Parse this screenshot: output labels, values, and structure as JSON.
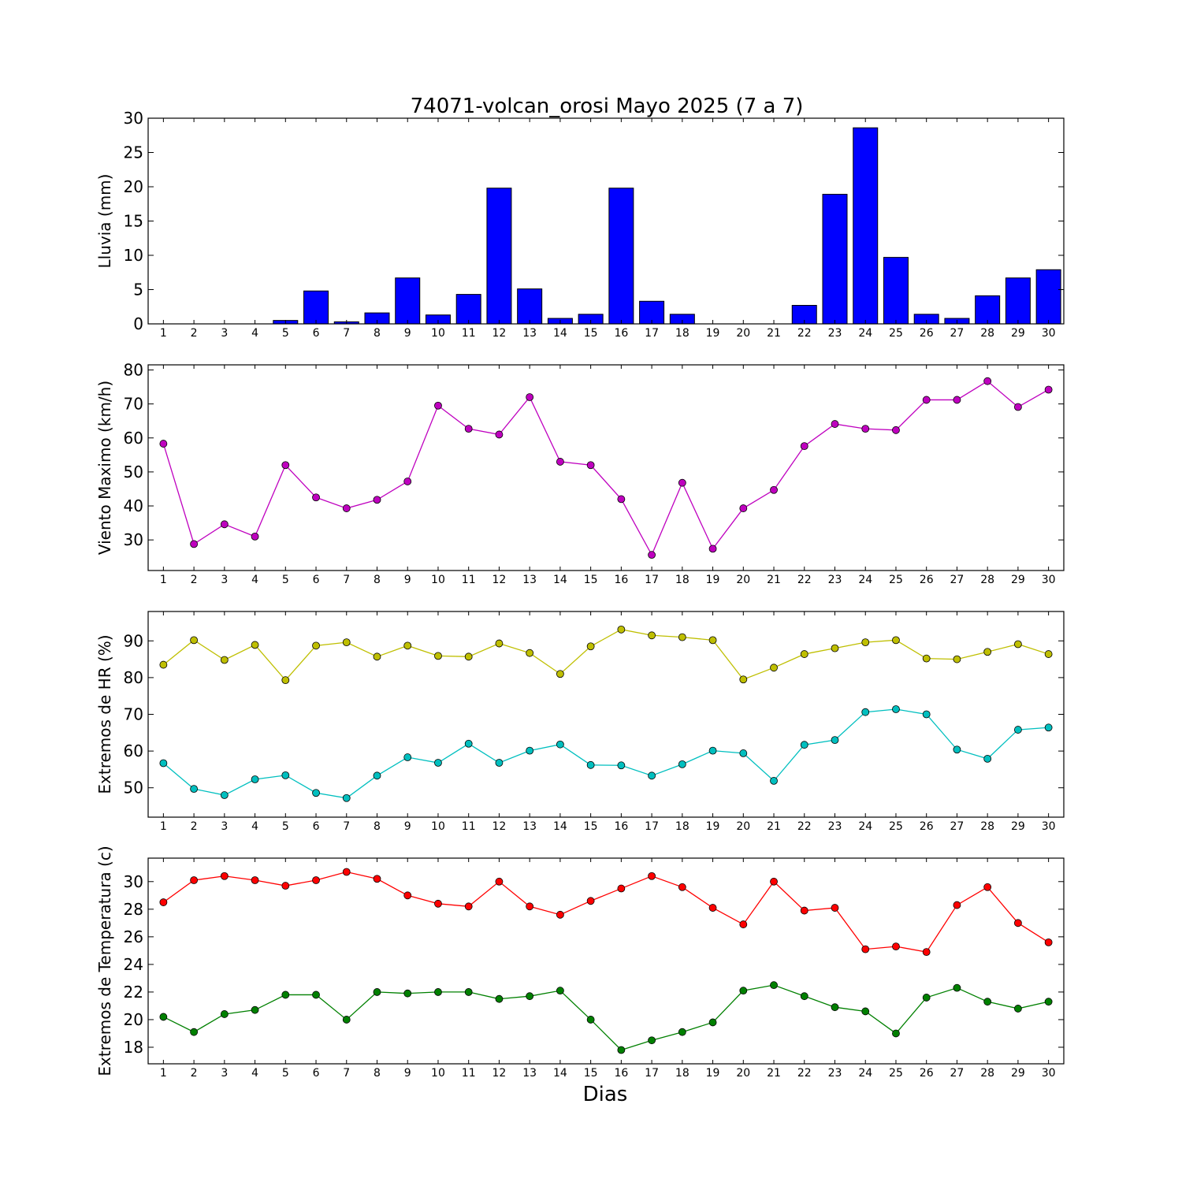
{
  "figure": {
    "title": "74071-volcan_orosi Mayo 2025  (7 a 7)",
    "xlabel": "Dias"
  },
  "chart_data": [
    {
      "type": "bar",
      "ylabel": "Lluvia (mm)",
      "ylim": [
        0,
        30
      ],
      "yticks": [
        0,
        5,
        10,
        15,
        20,
        25,
        30
      ],
      "categories": [
        1,
        2,
        3,
        4,
        5,
        6,
        7,
        8,
        9,
        10,
        11,
        12,
        13,
        14,
        15,
        16,
        17,
        18,
        19,
        20,
        21,
        22,
        23,
        24,
        25,
        26,
        27,
        28,
        29,
        30
      ],
      "series": [
        {
          "color": "#0000ff",
          "values": [
            0,
            0,
            0,
            0,
            0.5,
            4.8,
            0.3,
            1.6,
            6.7,
            1.3,
            4.3,
            19.8,
            5.1,
            0.8,
            1.4,
            19.8,
            3.3,
            1.4,
            0,
            0,
            0,
            2.7,
            18.9,
            28.6,
            9.7,
            1.4,
            0.8,
            4.1,
            6.7,
            7.9
          ]
        }
      ],
      "grid": false
    },
    {
      "type": "line",
      "ylabel": "Viento Maximo (km/h)",
      "ylim": [
        21,
        81.5
      ],
      "yticks": [
        30,
        40,
        50,
        60,
        70,
        80
      ],
      "x": [
        1,
        2,
        3,
        4,
        5,
        6,
        7,
        8,
        9,
        10,
        11,
        12,
        13,
        14,
        15,
        16,
        17,
        18,
        19,
        20,
        21,
        22,
        23,
        24,
        25,
        26,
        27,
        28,
        29,
        30
      ],
      "series": [
        {
          "color": "#bf00bf",
          "values": [
            58.3,
            28.8,
            34.6,
            31.0,
            52.0,
            42.5,
            39.3,
            41.8,
            47.2,
            69.5,
            62.7,
            61.0,
            72.0,
            53.0,
            52.0,
            42.0,
            25.6,
            46.8,
            27.4,
            39.3,
            44.7,
            57.6,
            64.1,
            62.7,
            62.3,
            71.2,
            71.2,
            76.7,
            69.1,
            74.2
          ]
        }
      ],
      "grid": false
    },
    {
      "type": "line",
      "ylabel": "Extremos de HR (%)",
      "ylim": [
        42,
        98
      ],
      "yticks": [
        50,
        60,
        70,
        80,
        90
      ],
      "x": [
        1,
        2,
        3,
        4,
        5,
        6,
        7,
        8,
        9,
        10,
        11,
        12,
        13,
        14,
        15,
        16,
        17,
        18,
        19,
        20,
        21,
        22,
        23,
        24,
        25,
        26,
        27,
        28,
        29,
        30
      ],
      "series": [
        {
          "color": "#bfbf00",
          "values": [
            83.5,
            90.2,
            84.8,
            88.9,
            79.3,
            88.7,
            89.6,
            85.7,
            88.7,
            85.9,
            85.7,
            89.3,
            86.7,
            81.0,
            88.5,
            93.1,
            91.5,
            91.0,
            90.2,
            79.5,
            82.7,
            86.4,
            88.0,
            89.6,
            90.2,
            85.2,
            85.0,
            87.0,
            89.1,
            86.4
          ]
        },
        {
          "color": "#00bfbf",
          "values": [
            56.7,
            49.7,
            48.0,
            52.3,
            53.4,
            48.6,
            47.2,
            53.3,
            58.3,
            56.8,
            62.0,
            56.8,
            60.1,
            61.8,
            56.2,
            56.1,
            53.3,
            56.4,
            60.1,
            59.4,
            51.9,
            61.7,
            63.0,
            70.6,
            71.4,
            70.0,
            60.4,
            57.9,
            65.8,
            66.4
          ]
        }
      ],
      "grid": false
    },
    {
      "type": "line",
      "ylabel": "Extremos de Temperatura (c)",
      "ylim": [
        16.8,
        31.7
      ],
      "yticks": [
        18,
        20,
        22,
        24,
        26,
        28,
        30
      ],
      "x": [
        1,
        2,
        3,
        4,
        5,
        6,
        7,
        8,
        9,
        10,
        11,
        12,
        13,
        14,
        15,
        16,
        17,
        18,
        19,
        20,
        21,
        22,
        23,
        24,
        25,
        26,
        27,
        28,
        29,
        30
      ],
      "series": [
        {
          "color": "#ff0000",
          "values": [
            28.5,
            30.1,
            30.4,
            30.1,
            29.7,
            30.1,
            30.7,
            30.2,
            29.0,
            28.4,
            28.2,
            30.0,
            28.2,
            27.6,
            28.6,
            29.5,
            30.4,
            29.6,
            28.1,
            26.9,
            30.0,
            27.9,
            28.1,
            25.1,
            25.3,
            24.9,
            28.3,
            29.6,
            27.0,
            25.6
          ]
        },
        {
          "color": "#008000",
          "values": [
            20.2,
            19.1,
            20.4,
            20.7,
            21.8,
            21.8,
            20.0,
            22.0,
            21.9,
            22.0,
            22.0,
            21.5,
            21.7,
            22.1,
            20.0,
            17.8,
            18.5,
            19.1,
            19.8,
            22.1,
            22.5,
            21.7,
            20.9,
            20.6,
            19.0,
            21.6,
            22.3,
            21.3,
            20.8,
            21.3
          ]
        }
      ],
      "grid": false
    }
  ]
}
